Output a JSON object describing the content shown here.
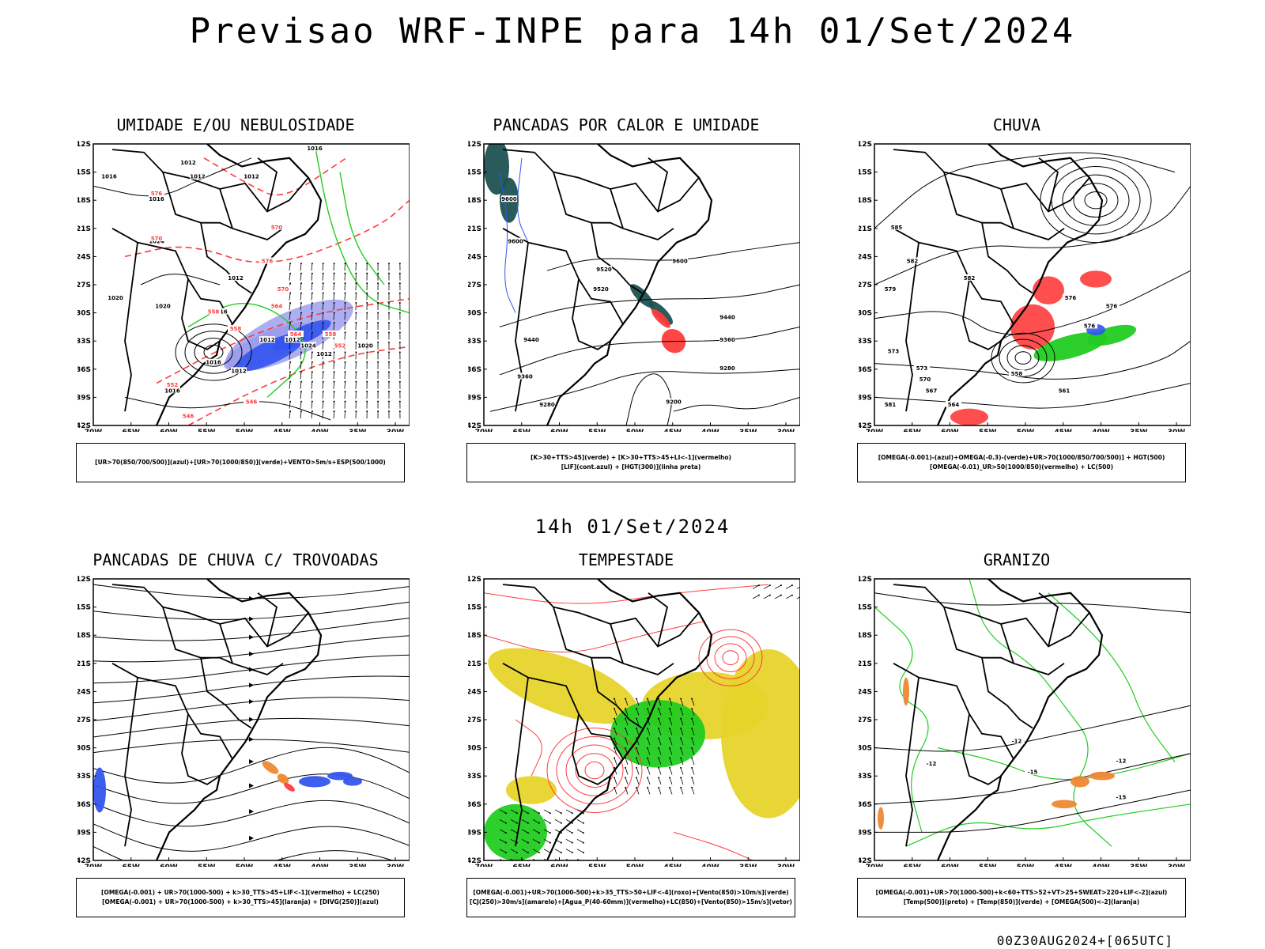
{
  "title": "Previsao WRF-INPE  para 14h 01/Set/2024",
  "middle_title": "14h 01/Set/2024",
  "footer": "00Z30AUG2024+[065UTC]",
  "axes": {
    "lat_labels": [
      "12S",
      "15S",
      "18S",
      "21S",
      "24S",
      "27S",
      "30S",
      "33S",
      "36S",
      "39S",
      "42S"
    ],
    "lon_labels": [
      "70W",
      "65W",
      "60W",
      "55W",
      "50W",
      "45W",
      "40W",
      "35W",
      "30W"
    ]
  },
  "colors": {
    "contour_black": "#000000",
    "red_dashed": "#ff3b3b",
    "green": "#22cc22",
    "blue": "#3355ee",
    "lavender": "#9999ee",
    "yellow": "#e6d42b",
    "orange": "#ee8833",
    "teal": "#1e5252"
  },
  "panels": [
    {
      "id": "umidade",
      "title": "UMIDADE E/OU NEBULOSIDADE",
      "legend": [
        "[UR>70(850/700/500)](azul)+[UR>70(1000/850)](verde)+VENTO>5m/s+ESP(500/1000)"
      ],
      "contour_labels_black": [
        "1016",
        "1012",
        "1012",
        "1012",
        "1016",
        "1016",
        "1012",
        "1020",
        "1016",
        "1016",
        "1012",
        "1024",
        "1020",
        "1012",
        "1012",
        "1016",
        "1020",
        "1024",
        "1012"
      ],
      "contour_labels_red": [
        "576",
        "570",
        "570",
        "576",
        "570",
        "564",
        "558",
        "564",
        "552",
        "558",
        "552",
        "546",
        "546",
        "558"
      ]
    },
    {
      "id": "pancadas_calor",
      "title": "PANCADAS POR CALOR E UMIDADE",
      "legend": [
        "[K>30+TTS>45](verde) + [K>30+TTS>45+LI<-1](vermelho)",
        "[LIF](cont.azul) + [HGT(300)](linha preta)"
      ],
      "contour_labels_black": [
        "9600",
        "9600",
        "9600",
        "9520",
        "9520",
        "9440",
        "9440",
        "9360",
        "9360",
        "9280",
        "9280",
        "9200"
      ]
    },
    {
      "id": "chuva",
      "title": "CHUVA",
      "legend": [
        "[OMEGA(-0.001)-(azul)+OMEGA(-0.3)-(verde)+UR>70(1000/850/700/500)] + HGT(500)",
        "[OMEGA(-0.01)_UR>50(1000/850)(vermelho) + LC(500)"
      ],
      "contour_labels_black": [
        "585",
        "582",
        "579",
        "582",
        "576",
        "576",
        "573",
        "570",
        "567",
        "564",
        "561",
        "558",
        "581",
        "573",
        "576"
      ]
    },
    {
      "id": "pancadas_trovoadas",
      "title": "PANCADAS DE CHUVA C/ TROVOADAS",
      "legend": [
        "[OMEGA(-0.001) + UR>70(1000-500) + k>30_TTS>45+LIF<-1](vermelho) + LC(250)",
        "[OMEGA(-0.001) + UR>70(1000-500) + k>30_TTS>45](laranja) + [DIVG(250)](azul)"
      ]
    },
    {
      "id": "tempestade",
      "title": "TEMPESTADE",
      "legend": [
        "[OMEGA(-0.001)+UR>70(1000-500)+k>35_TTS>50+LIF<-4](roxo)+[Vento(850)>10m/s](verde)",
        "[CJ(250)>30m/s](amarelo)+[Agua_P(40-60mm)](vermelho)+LC(850)+[Vento(850)>15m/s](vetor)"
      ]
    },
    {
      "id": "granizo",
      "title": "GRANIZO",
      "legend": [
        "[OMEGA(-0.001)+UR>70(1000-500)+k<60+TTS>52+VT>25+SWEAT>220+LIF<-2](azul)",
        "[Temp(500)](preto) + [Temp(850)](verde) + [OMEGA(500)<-2](laranja)"
      ],
      "contour_labels_black": [
        "-12",
        "-12",
        "-15",
        "-15",
        "-12"
      ]
    }
  ]
}
